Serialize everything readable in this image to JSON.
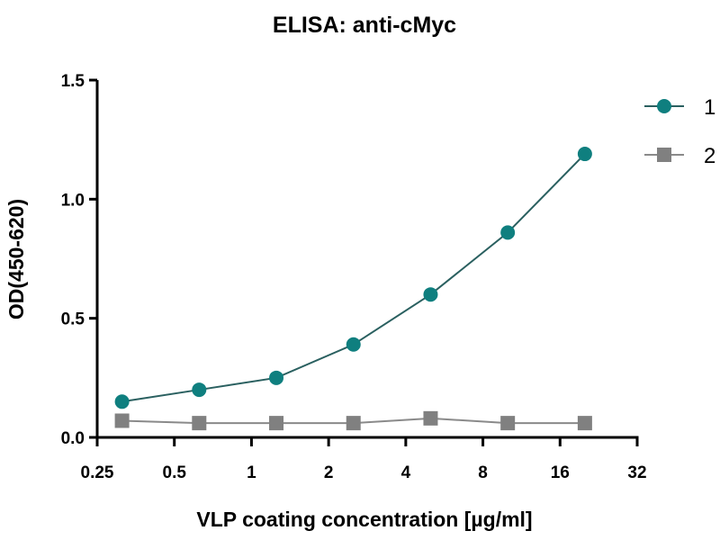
{
  "chart_data": {
    "type": "line",
    "title": "ELISA: anti-cMyc",
    "xlabel": "VLP coating concentration [µg/ml]",
    "ylabel": "OD(450-620)",
    "xscale": "log2",
    "xlim": [
      0.25,
      32
    ],
    "ylim": [
      0,
      1.5
    ],
    "xticks": [
      0.25,
      0.5,
      1,
      2,
      4,
      8,
      16,
      32
    ],
    "xtick_labels": [
      "0.25",
      "0.5",
      "1",
      "2",
      "4",
      "8",
      "16",
      "32"
    ],
    "yticks": [
      0,
      0.5,
      1.0,
      1.5
    ],
    "ytick_labels": [
      "0.0",
      "0.5",
      "1.0",
      "1.5"
    ],
    "grid": false,
    "legend_position": "top-right",
    "x": [
      0.3125,
      0.625,
      1.25,
      2.5,
      5,
      10,
      20
    ],
    "series": [
      {
        "name": "1",
        "marker": "circle",
        "color": "#0f7f7f",
        "line_color": "#2a6060",
        "values": [
          0.15,
          0.2,
          0.25,
          0.39,
          0.6,
          0.86,
          1.19
        ]
      },
      {
        "name": "2",
        "marker": "square",
        "color": "#808080",
        "line_color": "#8a8a8a",
        "values": [
          0.07,
          0.06,
          0.06,
          0.06,
          0.08,
          0.06,
          0.06
        ]
      }
    ]
  }
}
